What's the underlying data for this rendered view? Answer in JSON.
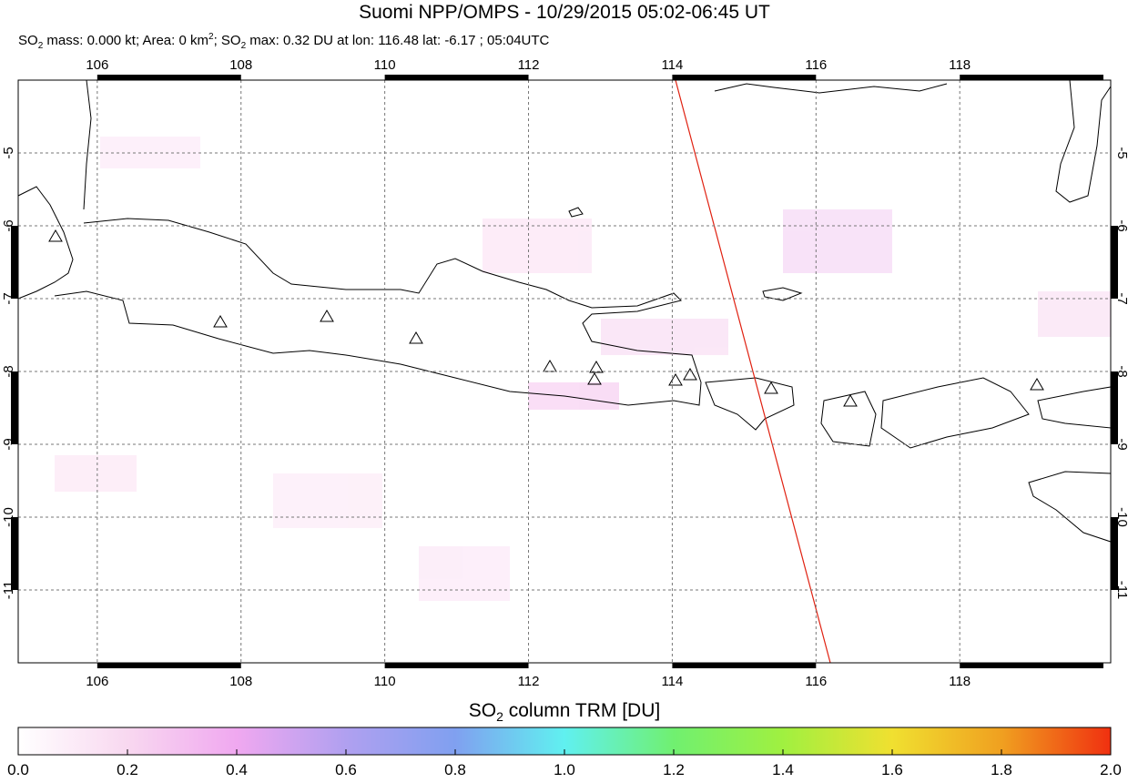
{
  "chart_data": {
    "type": "map",
    "title": "Suomi NPP/OMPS - 10/29/2015 05:02-06:45 UT",
    "subtitle": [
      "SO",
      "2",
      " mass: 0.000 kt; Area: 0 km",
      "2",
      "; SO",
      "2",
      " max: 0.32 DU at lon: 116.48 lat: -6.17 ; 05:04UTC"
    ],
    "xlim": [
      104.9,
      120.1
    ],
    "xticks": [
      106,
      108,
      110,
      112,
      114,
      116,
      118
    ],
    "ylim": [
      -12,
      -4
    ],
    "yticks": [
      -5,
      -6,
      -7,
      -8,
      -9,
      -10,
      -11
    ],
    "grid": true,
    "colorbar": {
      "label": [
        "SO",
        "2",
        " column TRM [DU]"
      ],
      "lim": [
        0,
        2
      ],
      "ticks": [
        {
          "value": 0,
          "label": "0.0"
        },
        {
          "value": 0.2,
          "label": "0.2"
        },
        {
          "value": 0.4,
          "label": "0.4"
        },
        {
          "value": 0.6,
          "label": "0.6"
        },
        {
          "value": 0.8,
          "label": "0.8"
        },
        {
          "value": 1,
          "label": "1.0"
        },
        {
          "value": 1.2,
          "label": "1.2"
        },
        {
          "value": 1.4,
          "label": "1.4"
        },
        {
          "value": 1.6,
          "label": "1.6"
        },
        {
          "value": 1.8,
          "label": "1.8"
        },
        {
          "value": 2,
          "label": "2.0"
        }
      ],
      "colors": [
        "#ffffff",
        "#f8d8f0",
        "#f0a8f0",
        "#b0a0f0",
        "#80a0f0",
        "#60f0f0",
        "#70f070",
        "#a0f040",
        "#f0e030",
        "#f0a020",
        "#f03010"
      ]
    }
  }
}
